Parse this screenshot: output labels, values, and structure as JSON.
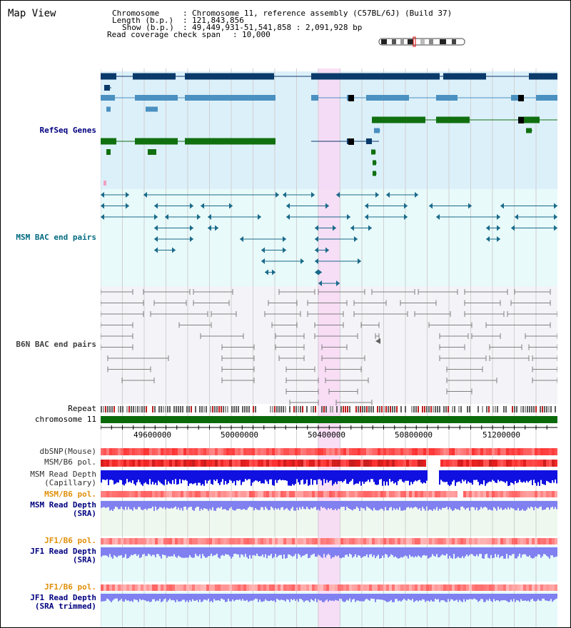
{
  "page": {
    "title": "Map View"
  },
  "header": {
    "chromosome_label": "Chromosome",
    "chromosome_value": "Chromosome 11, reference assembly (C57BL/6J) (Build 37)",
    "length_label": "Length (b.p.)",
    "length_value": "121,843,856",
    "show_label": "Show (b.p.)",
    "show_value": "49,449,931-51,541,858 : 2,091,928 bp",
    "span_label": "Read coverage check span",
    "span_value": "10,000"
  },
  "tracks": {
    "refseq": "RefSeq Genes",
    "msm_bac": "MSM BAC end pairs",
    "b6n_bac": "B6N BAC end pairs",
    "repeat": "Repeat",
    "chromosome": "chromosome 11",
    "dbsnp": "dbSNP(Mouse)",
    "msm_b6_pol_1": "MSM/B6 pol.",
    "msm_read_depth_cap_1": "MSM Read Depth",
    "msm_read_depth_cap_2": "(Capillary)",
    "msm_b6_pol_2": "MSM/B6 pol.",
    "msm_read_depth_sra_1": "MSM Read Depth",
    "msm_read_depth_sra_2": "(SRA)",
    "jf1_b6_pol_1": "JF1/B6 pol.",
    "jf1_read_depth_sra_1": "JF1 Read Depth",
    "jf1_read_depth_sra_2": "(SRA)",
    "jf1_b6_pol_2": "JF1/B6 pol.",
    "jf1_read_depth_trim_1": "JF1 Read Depth",
    "jf1_read_depth_trim_2": "(SRA trimmed)"
  },
  "axis": {
    "ticks": [
      "49600000",
      "50000000",
      "50400000",
      "50800000",
      "51200000"
    ]
  },
  "colors": {
    "refseq_bg": "#dcf0fa",
    "msm_bg": "#e8fafa",
    "b6n_bg": "#f4f4f8",
    "highlight": "#f8d8f4",
    "gene_dark": "#0a3a6a",
    "gene_mid": "#4a90c0",
    "gene_green": "#107010",
    "msm_line": "#1a6a8a",
    "b6n_line": "#808080",
    "chromosome_bar": "#0a6a0a",
    "depth_blue": "#1010e0",
    "depth_light": "#8080f0",
    "label_blue": "#000080",
    "label_teal": "#006a80",
    "label_orange": "#e0900a",
    "label_gray": "#404040"
  }
}
